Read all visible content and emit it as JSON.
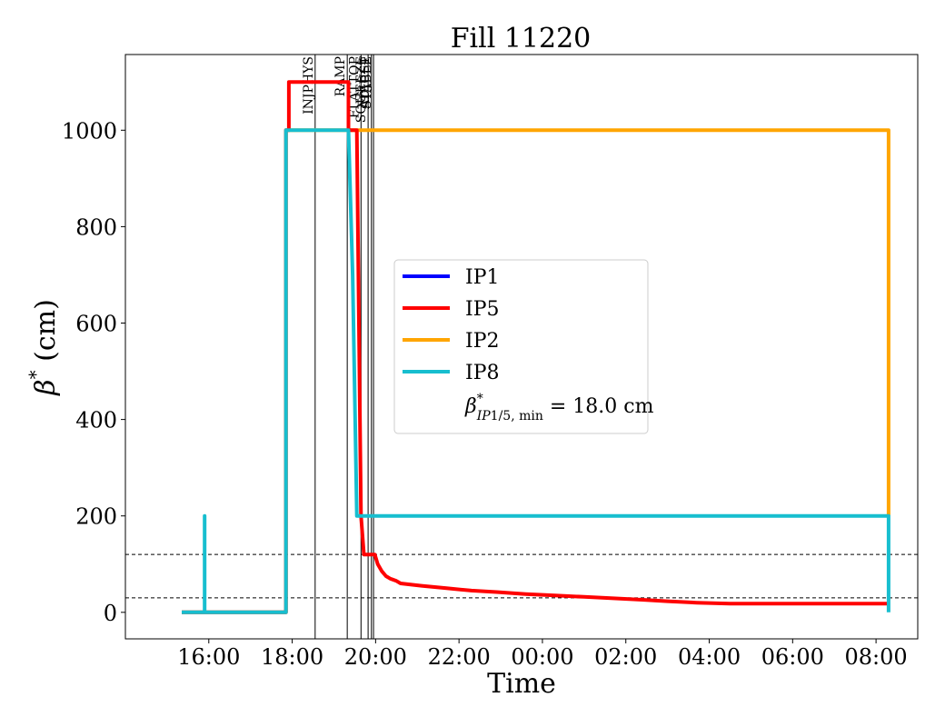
{
  "chart_data": {
    "type": "line",
    "title": "Fill 11220",
    "xlabel": "Time",
    "ylabel": "β* (cm)",
    "x_unit": "hours since 00:00 of first day (values ≥24 are next day)",
    "xlim": [
      14.0,
      33.0
    ],
    "ylim": [
      -55,
      1157
    ],
    "xticks": [
      {
        "x": 16,
        "label": "16:00"
      },
      {
        "x": 18,
        "label": "18:00"
      },
      {
        "x": 20,
        "label": "20:00"
      },
      {
        "x": 22,
        "label": "22:00"
      },
      {
        "x": 24,
        "label": "00:00"
      },
      {
        "x": 26,
        "label": "02:00"
      },
      {
        "x": 28,
        "label": "04:00"
      },
      {
        "x": 30,
        "label": "06:00"
      },
      {
        "x": 32,
        "label": "08:00"
      }
    ],
    "yticks": [
      0,
      200,
      400,
      600,
      800,
      1000
    ],
    "hlines": [
      120,
      30
    ],
    "vlines": [
      {
        "x": 18.55,
        "label": "INJPHYS"
      },
      {
        "x": 19.32,
        "label": "RAMP"
      },
      {
        "x": 19.65,
        "label": "FLATTOP"
      },
      {
        "x": 19.82,
        "label": "SQUEEZE"
      },
      {
        "x": 19.9,
        "label": "ADJUST"
      },
      {
        "x": 19.95,
        "label": "STABLE"
      }
    ],
    "series": [
      {
        "name": "IP1",
        "color": "#0000ff",
        "points": []
      },
      {
        "name": "IP5",
        "color": "#ff0000",
        "points": [
          [
            15.35,
            0
          ],
          [
            17.85,
            0
          ],
          [
            17.85,
            1000
          ],
          [
            17.92,
            1000
          ],
          [
            17.92,
            1100
          ],
          [
            19.35,
            1100
          ],
          [
            19.35,
            1000
          ],
          [
            19.55,
            1000
          ],
          [
            19.65,
            200
          ],
          [
            19.72,
            120
          ],
          [
            19.98,
            120
          ],
          [
            20.05,
            100
          ],
          [
            20.15,
            85
          ],
          [
            20.25,
            75
          ],
          [
            20.35,
            70
          ],
          [
            20.5,
            65
          ],
          [
            20.6,
            60
          ],
          [
            21.1,
            55
          ],
          [
            21.7,
            50
          ],
          [
            22.3,
            45
          ],
          [
            22.9,
            42
          ],
          [
            23.6,
            38
          ],
          [
            24.3,
            35
          ],
          [
            25.0,
            32
          ],
          [
            25.7,
            29
          ],
          [
            26.4,
            26
          ],
          [
            27.0,
            23
          ],
          [
            27.7,
            20
          ],
          [
            28.5,
            18
          ],
          [
            32.3,
            18
          ]
        ]
      },
      {
        "name": "IP2",
        "color": "#ffa500",
        "points": [
          [
            15.35,
            0
          ],
          [
            17.85,
            0
          ],
          [
            17.85,
            1000
          ],
          [
            32.3,
            1000
          ],
          [
            32.3,
            200
          ]
        ]
      },
      {
        "name": "IP8",
        "color": "#17becf",
        "points": [
          [
            15.35,
            0
          ],
          [
            15.9,
            0
          ],
          [
            15.9,
            200
          ],
          [
            15.9,
            0
          ],
          [
            17.85,
            0
          ],
          [
            17.85,
            1000
          ],
          [
            19.35,
            1000
          ],
          [
            19.45,
            700
          ],
          [
            19.55,
            200
          ],
          [
            32.3,
            200
          ],
          [
            32.3,
            0
          ]
        ]
      }
    ],
    "legend": {
      "placement": "center",
      "extra_label": "β*IP1/5, min = 18.0 cm"
    }
  }
}
